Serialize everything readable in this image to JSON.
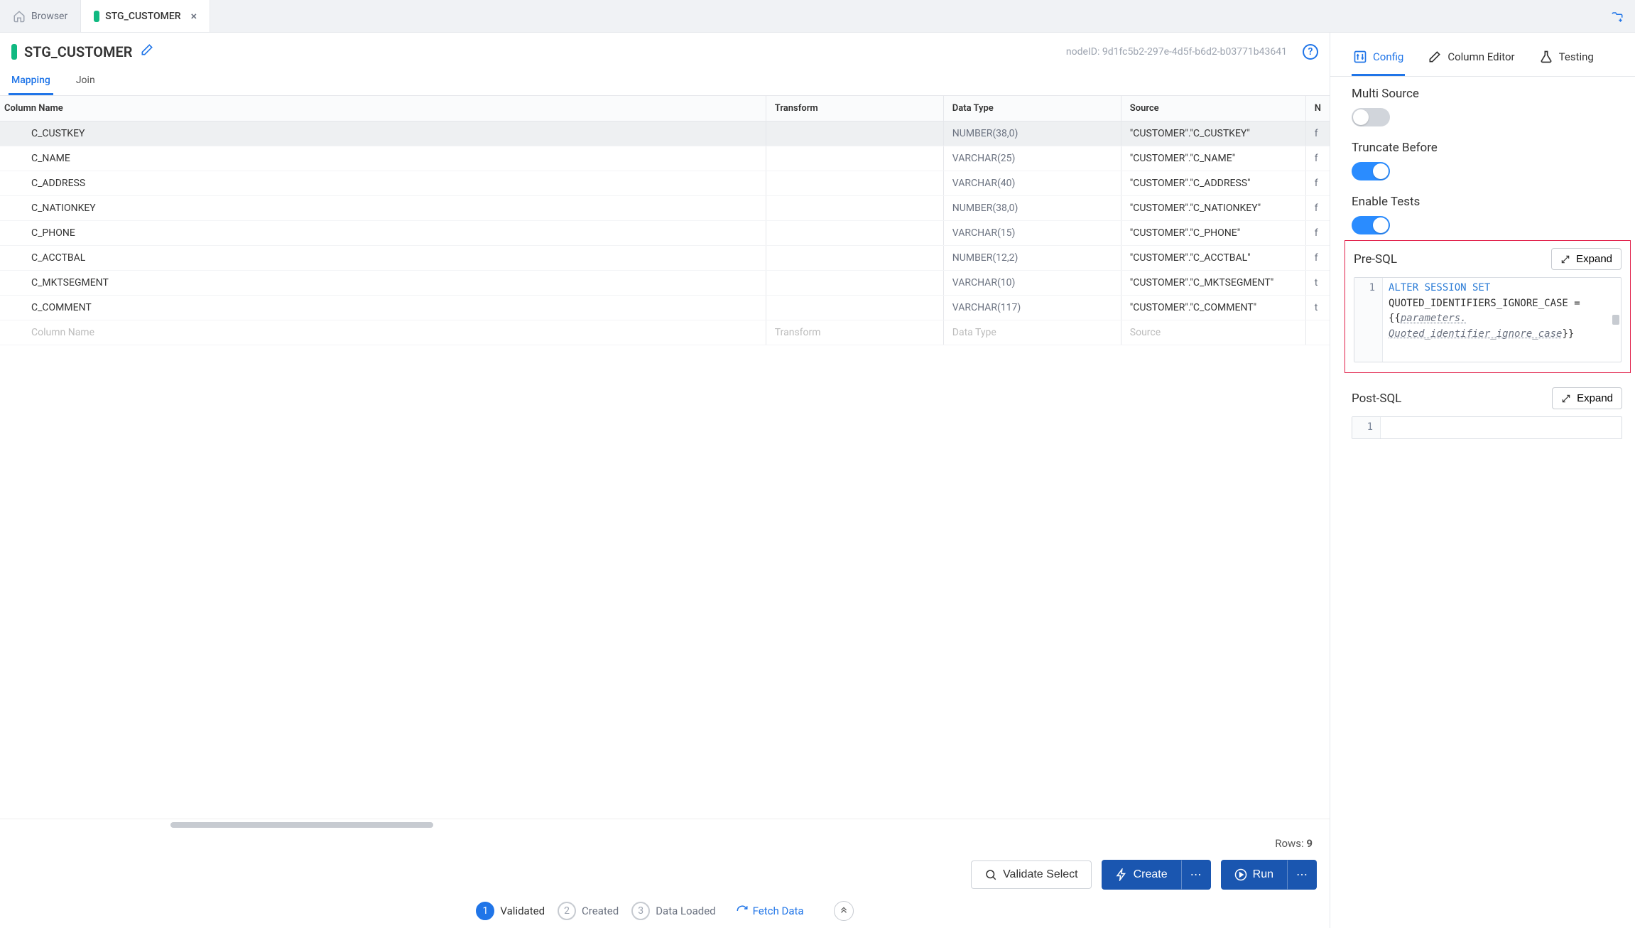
{
  "colors": {
    "accent": "#2075e8",
    "primaryBtn": "#1a56b0",
    "nodeGreen": "#10b981",
    "toggleOn": "#2a8cff",
    "toggleOff": "#d1d5db",
    "highlightBorder": "#e11d48",
    "mutedText": "#6b7280"
  },
  "tabstrip": {
    "browser_label": "Browser",
    "active_tab_label": "STG_CUSTOMER"
  },
  "header": {
    "title": "STG_CUSTOMER",
    "node_id_label": "nodeID:",
    "node_id": "9d1fc5b2-297e-4d5f-b6d2-b03771b43641"
  },
  "subtabs": {
    "mapping": "Mapping",
    "join": "Join"
  },
  "columns": {
    "name": "Column Name",
    "transform": "Transform",
    "datatype": "Data Type",
    "source": "Source",
    "null": "N"
  },
  "rows": [
    {
      "name": "C_CUSTKEY",
      "transform": "",
      "datatype": "NUMBER(38,0)",
      "source": "\"CUSTOMER\".\"C_CUSTKEY\"",
      "null": "f",
      "selected": true
    },
    {
      "name": "C_NAME",
      "transform": "",
      "datatype": "VARCHAR(25)",
      "source": "\"CUSTOMER\".\"C_NAME\"",
      "null": "f"
    },
    {
      "name": "C_ADDRESS",
      "transform": "",
      "datatype": "VARCHAR(40)",
      "source": "\"CUSTOMER\".\"C_ADDRESS\"",
      "null": "f"
    },
    {
      "name": "C_NATIONKEY",
      "transform": "",
      "datatype": "NUMBER(38,0)",
      "source": "\"CUSTOMER\".\"C_NATIONKEY\"",
      "null": "f"
    },
    {
      "name": "C_PHONE",
      "transform": "",
      "datatype": "VARCHAR(15)",
      "source": "\"CUSTOMER\".\"C_PHONE\"",
      "null": "f"
    },
    {
      "name": "C_ACCTBAL",
      "transform": "",
      "datatype": "NUMBER(12,2)",
      "source": "\"CUSTOMER\".\"C_ACCTBAL\"",
      "null": "f"
    },
    {
      "name": "C_MKTSEGMENT",
      "transform": "",
      "datatype": "VARCHAR(10)",
      "source": "\"CUSTOMER\".\"C_MKTSEGMENT\"",
      "null": "t"
    },
    {
      "name": "C_COMMENT",
      "transform": "",
      "datatype": "VARCHAR(117)",
      "source": "\"CUSTOMER\".\"C_COMMENT\"",
      "null": "t"
    }
  ],
  "placeholder_row": {
    "name": "Column Name",
    "transform": "Transform",
    "datatype": "Data Type",
    "source": "Source"
  },
  "rows_footer": {
    "label": "Rows:",
    "count": "9"
  },
  "actions": {
    "validate": "Validate Select",
    "create": "Create",
    "run": "Run"
  },
  "stepper": {
    "step1": {
      "num": "1",
      "label": "Validated"
    },
    "step2": {
      "num": "2",
      "label": "Created"
    },
    "step3": {
      "num": "3",
      "label": "Data Loaded"
    },
    "fetch": "Fetch Data"
  },
  "rpanel": {
    "tabs": {
      "config": "Config",
      "column_editor": "Column Editor",
      "testing": "Testing"
    },
    "multi_source": {
      "label": "Multi Source",
      "on": false
    },
    "truncate_before": {
      "label": "Truncate Before",
      "on": true
    },
    "enable_tests": {
      "label": "Enable Tests",
      "on": true
    },
    "presql": {
      "label": "Pre-SQL",
      "expand": "Expand",
      "line_no": "1",
      "code_kw": "ALTER SESSION SET",
      "code_rest1": "QUOTED_IDENTIFIERS_IGNORE_CASE =",
      "code_param_open": "{{",
      "code_param_body": "parameters.\nQuoted_identifier_ignore_case",
      "code_param_close": "}}"
    },
    "postsql": {
      "label": "Post-SQL",
      "expand": "Expand",
      "line_no": "1"
    }
  }
}
